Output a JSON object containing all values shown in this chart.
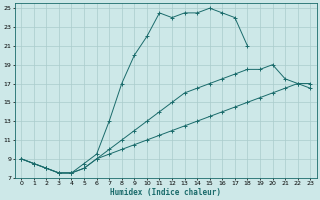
{
  "title": "",
  "xlabel": "Humidex (Indice chaleur)",
  "bg_color": "#cde8e8",
  "grid_color": "#aacccc",
  "line_color": "#1a6b6b",
  "xlim": [
    -0.5,
    23.5
  ],
  "ylim": [
    7,
    25.5
  ],
  "xticks": [
    0,
    1,
    2,
    3,
    4,
    5,
    6,
    7,
    8,
    9,
    10,
    11,
    12,
    13,
    14,
    15,
    16,
    17,
    18,
    19,
    20,
    21,
    22,
    23
  ],
  "yticks": [
    7,
    9,
    11,
    13,
    15,
    17,
    19,
    21,
    23,
    25
  ],
  "curve_upper_x": [
    0,
    1,
    2,
    3,
    4,
    5,
    6,
    7,
    8,
    9,
    10,
    11,
    12,
    13,
    14,
    15,
    16,
    17,
    18
  ],
  "curve_upper_y": [
    9,
    8.5,
    8,
    7.5,
    7.5,
    8.5,
    9.5,
    13,
    17,
    20,
    22,
    24.5,
    24,
    24.5,
    24.5,
    25,
    24.5,
    24,
    21
  ],
  "curve_mid_x": [
    0,
    1,
    2,
    3,
    4,
    5,
    6,
    7,
    8,
    9,
    10,
    11,
    12,
    13,
    14,
    15,
    16,
    17,
    18,
    19,
    20,
    21,
    22,
    23
  ],
  "curve_mid_y": [
    9,
    8.5,
    8,
    7.5,
    7.5,
    8,
    9,
    10,
    11,
    12,
    13,
    14,
    15,
    16,
    16.5,
    17,
    17.5,
    18,
    18.5,
    18.5,
    19,
    17.5,
    17,
    17
  ],
  "curve_lower_x": [
    0,
    1,
    2,
    3,
    4,
    5,
    6,
    7,
    8,
    9,
    10,
    11,
    12,
    13,
    14,
    15,
    16,
    17,
    18,
    19,
    20,
    21,
    22,
    23
  ],
  "curve_lower_y": [
    9,
    8.5,
    8,
    7.5,
    7.5,
    8,
    9,
    9.5,
    10,
    10.5,
    11,
    11.5,
    12,
    12.5,
    13,
    13.5,
    14,
    14.5,
    15,
    15.5,
    16,
    16.5,
    17,
    16.5
  ]
}
